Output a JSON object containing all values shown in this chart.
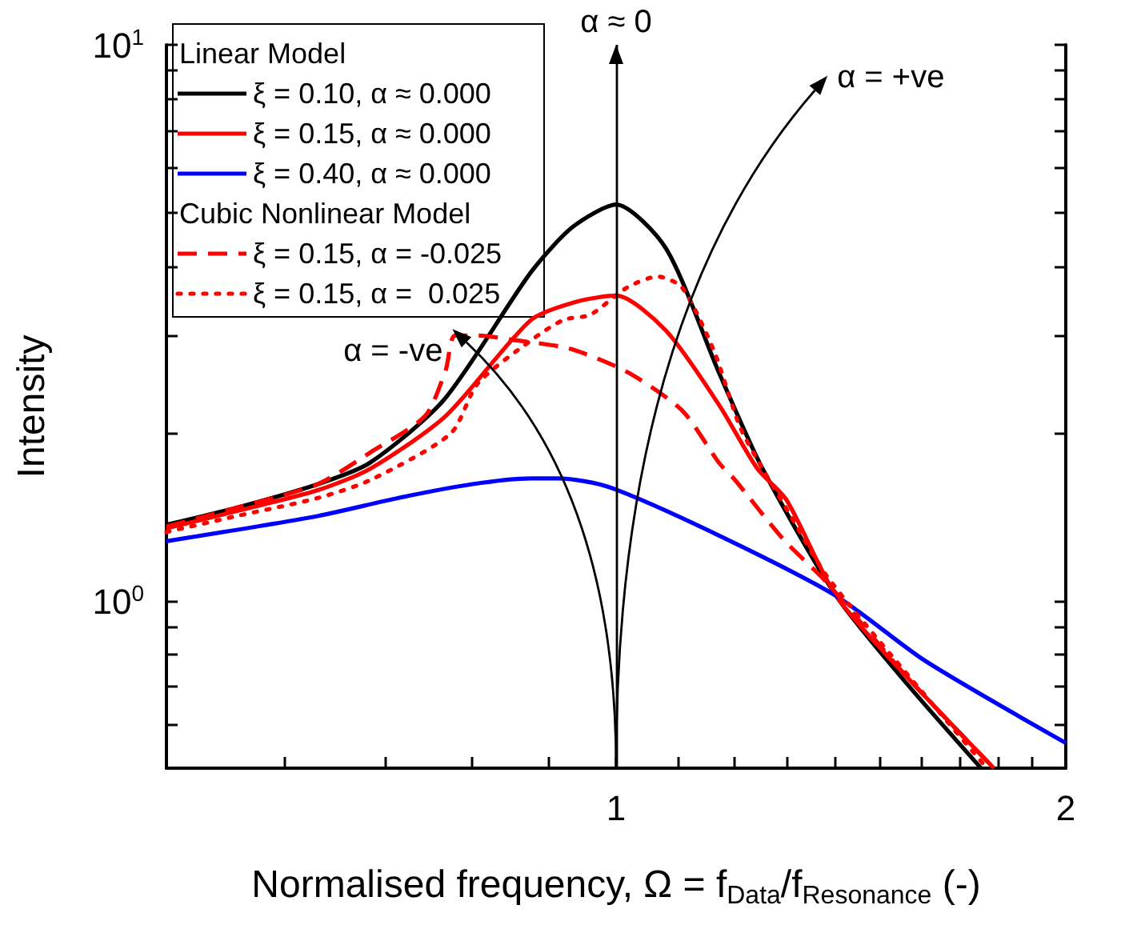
{
  "chart_data": {
    "type": "line",
    "xlabel": "Normalised frequency, Ω = f$_{Data}$/f$_{Resonance}$ (-)",
    "ylabel": "Intensity",
    "log": "xy",
    "xlim": [
      0.5,
      2
    ],
    "ylim": [
      0.5,
      10
    ],
    "xticks": [
      {
        "value": 0.6,
        "label": null
      },
      {
        "value": 0.7,
        "label": null
      },
      {
        "value": 0.8,
        "label": null
      },
      {
        "value": 0.9,
        "label": null
      },
      1,
      {
        "value": 1.1,
        "label": null
      },
      {
        "value": 1.2,
        "label": null
      },
      {
        "value": 1.3,
        "label": null
      },
      {
        "value": 1.4,
        "label": null
      },
      {
        "value": 1.5,
        "label": null
      },
      {
        "value": 1.6,
        "label": null
      },
      {
        "value": 1.7,
        "label": null
      },
      {
        "value": 1.8,
        "label": null
      },
      {
        "value": 1.9,
        "label": null
      },
      2
    ],
    "yticks": [
      {
        "value": 0.6,
        "label": null
      },
      {
        "value": 0.7,
        "label": null
      },
      {
        "value": 0.8,
        "label": null
      },
      {
        "value": 0.9,
        "label": null
      },
      {
        "value": 1,
        "label": "10$^{0}$"
      },
      {
        "value": 2,
        "label": null
      },
      {
        "value": 3,
        "label": null
      },
      {
        "value": 4,
        "label": null
      },
      {
        "value": 5,
        "label": null
      },
      {
        "value": 6,
        "label": null
      },
      {
        "value": 7,
        "label": null
      },
      {
        "value": 8,
        "label": null
      },
      {
        "value": 9,
        "label": null
      },
      {
        "value": 10,
        "label": "10$^{1}$"
      }
    ],
    "legend": "top left",
    "legend_title": "Linear Model",
    "marker": "none",
    "series": [
      {
        "name": "ξ = 0.10, α ≈ 0.000",
        "color": "#000000",
        "line_style": "solid",
        "x": [
          0.5,
          0.557,
          0.631,
          0.684,
          0.767,
          0.877,
          0.935,
          1.0,
          1.08,
          1.172,
          1.253,
          1.404,
          1.565,
          1.755
        ],
        "values": [
          1.37,
          1.47,
          1.62,
          1.77,
          2.3,
          3.9,
          4.7,
          5.16,
          4.3,
          2.57,
          1.73,
          1.02,
          0.71,
          0.5
        ]
      },
      {
        "name": "ξ = 0.15, α ≈ 0.000",
        "color": "#ff0000",
        "line_style": "solid",
        "x": [
          0.5,
          0.557,
          0.631,
          0.685,
          0.769,
          0.877,
          0.94,
          1.0,
          1.08,
          1.172,
          1.243,
          1.3,
          1.404,
          1.565,
          1.79
        ],
        "values": [
          1.35,
          1.45,
          1.58,
          1.73,
          2.15,
          3.2,
          3.45,
          3.54,
          3.06,
          2.25,
          1.73,
          1.52,
          1.02,
          0.73,
          0.5
        ]
      },
      {
        "name": "ξ = 0.40, α ≈ 0.000",
        "color": "#0000ff",
        "line_style": "solid",
        "x": [
          0.5,
          0.631,
          0.714,
          0.8,
          0.877,
          0.915,
          0.99,
          1.172,
          1.404,
          1.61,
          2.0
        ],
        "values": [
          1.28,
          1.42,
          1.53,
          1.62,
          1.66,
          1.66,
          1.6,
          1.31,
          1.02,
          0.78,
          0.555
        ]
      },
      {
        "name": "ξ = 0.15, α = -0.025",
        "color": "#ff0000",
        "line_style": "dashed",
        "x": [
          0.5,
          0.557,
          0.631,
          0.685,
          0.745,
          0.769,
          0.78,
          0.81,
          0.85,
          0.931,
          1.017,
          1.107,
          1.172,
          1.201,
          1.294,
          1.383,
          1.565,
          1.79
        ],
        "values": [
          1.36,
          1.47,
          1.62,
          1.85,
          2.15,
          2.6,
          3.0,
          3.0,
          2.95,
          2.84,
          2.58,
          2.2,
          1.77,
          1.65,
          1.29,
          1.08,
          0.73,
          0.5
        ]
      },
      {
        "name": "ξ = 0.15, α =  0.025",
        "color": "#ff0000",
        "line_style": "dotted",
        "x": [
          0.5,
          0.557,
          0.631,
          0.685,
          0.775,
          0.808,
          0.877,
          0.922,
          0.961,
          1.017,
          1.066,
          1.107,
          1.163,
          1.21,
          1.253,
          1.303,
          1.383,
          1.527,
          1.771
        ],
        "values": [
          1.33,
          1.42,
          1.53,
          1.65,
          2.0,
          2.46,
          2.94,
          3.2,
          3.27,
          3.66,
          3.83,
          3.66,
          2.81,
          2.06,
          1.73,
          1.45,
          1.11,
          0.8,
          0.5
        ]
      }
    ],
    "ref_lines": [
      {
        "axis": "x",
        "value": 1,
        "label": "α ≈ 0",
        "color": "#000000"
      }
    ],
    "annotations": [
      "α = +ve",
      "α = -ve",
      "Cubic Nonlinear Model"
    ]
  }
}
